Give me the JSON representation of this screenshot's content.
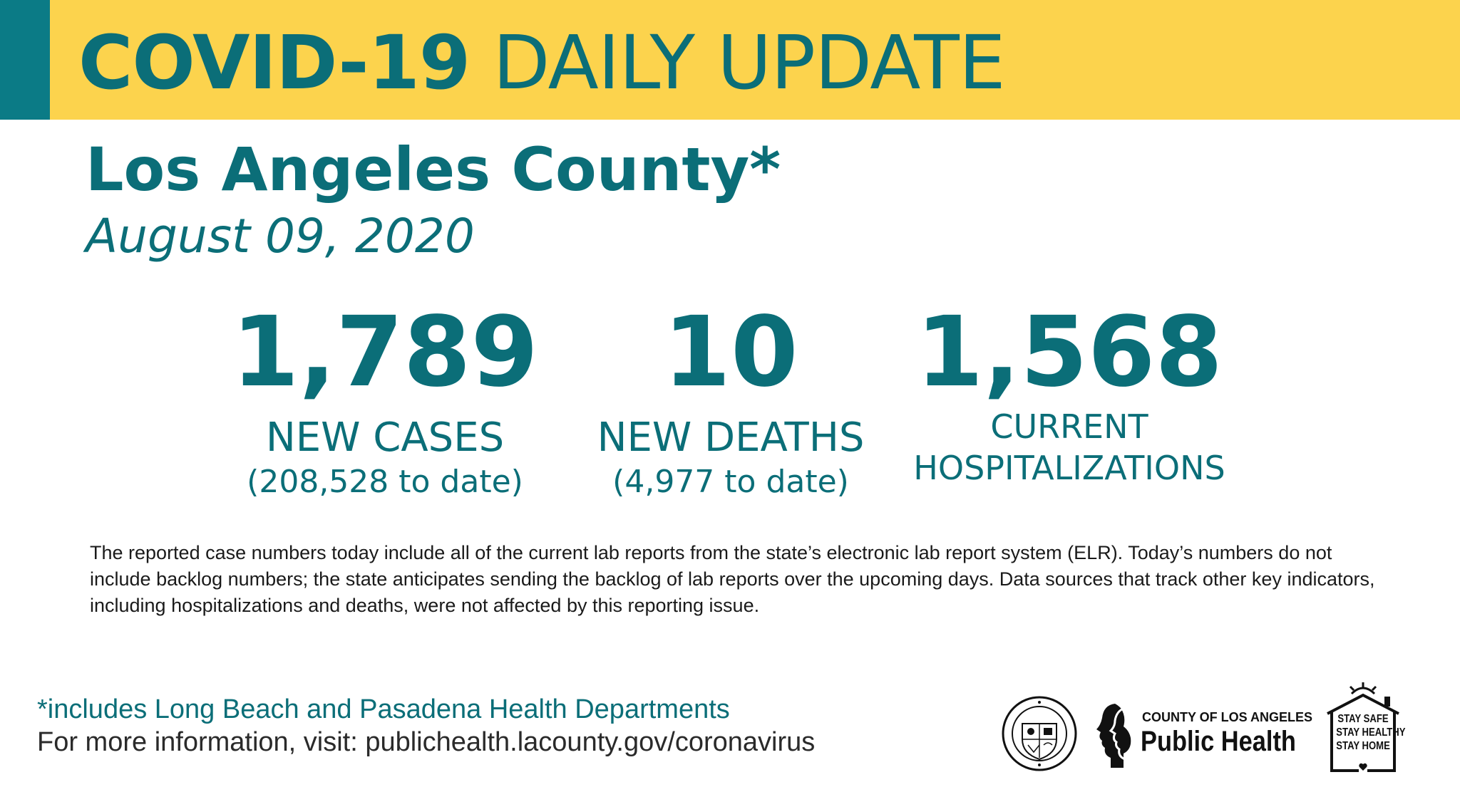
{
  "banner": {
    "title_bold": "COVID-19",
    "title_rest": "DAILY UPDATE",
    "background_color": "#fcd34d",
    "accent_color": "#0b7b86"
  },
  "header": {
    "county": "Los Angeles County*",
    "date": "August 09, 2020"
  },
  "stats": [
    {
      "value": "1,789",
      "label": "NEW CASES",
      "sub": "(208,528 to date)"
    },
    {
      "value": "10",
      "label": "NEW DEATHS",
      "sub": "(4,977 to date)"
    },
    {
      "value": "1,568",
      "label_line1": "CURRENT",
      "label_line2": "HOSPITALIZATIONS"
    }
  ],
  "note": "The reported case numbers today include all of the current lab reports from the state’s electronic lab report system (ELR). Today’s numbers do not include backlog numbers; the state anticipates sending the backlog of lab reports over the upcoming days. Data sources that track other key indicators, including hospitalizations and deaths, were not affected by this reporting issue.",
  "footer": {
    "footnote": "*includes Long Beach and Pasadena Health Departments",
    "info": "For more information, visit: publichealth.lacounty.gov/coronavirus"
  },
  "logos": {
    "seal": "County of Los Angeles seal",
    "public_health_small": "COUNTY OF LOS ANGELES",
    "public_health_big": "Public Health",
    "stay_lines": [
      "STAY SAFE",
      "STAY HEALTHY",
      "STAY HOME"
    ]
  },
  "text_color": "#0b6e78"
}
